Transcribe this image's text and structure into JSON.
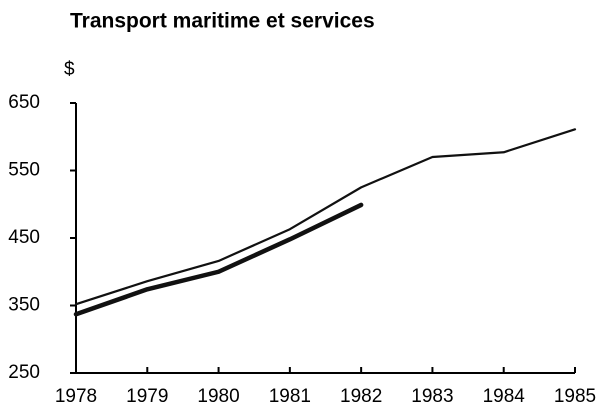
{
  "chart_data": {
    "type": "line",
    "title": "Transport maritime et services",
    "ylabel": "$",
    "x": [
      1978,
      1979,
      1980,
      1981,
      1982,
      1983,
      1984,
      1985
    ],
    "series": [
      {
        "color": "#111111",
        "linewidth": 2.2,
        "values": [
          352,
          386,
          416,
          463,
          525,
          570,
          577,
          611
        ]
      },
      {
        "color": "#111111",
        "linewidth": 4.5,
        "values": [
          337,
          374,
          400,
          448,
          499,
          null,
          null,
          null
        ]
      }
    ],
    "xlim": [
      1978,
      1985
    ],
    "xticks": [
      1978,
      1979,
      1980,
      1981,
      1982,
      1983,
      1984,
      1985
    ],
    "ylim": [
      250,
      650
    ],
    "yticks": [
      250,
      350,
      450,
      550,
      650
    ]
  }
}
